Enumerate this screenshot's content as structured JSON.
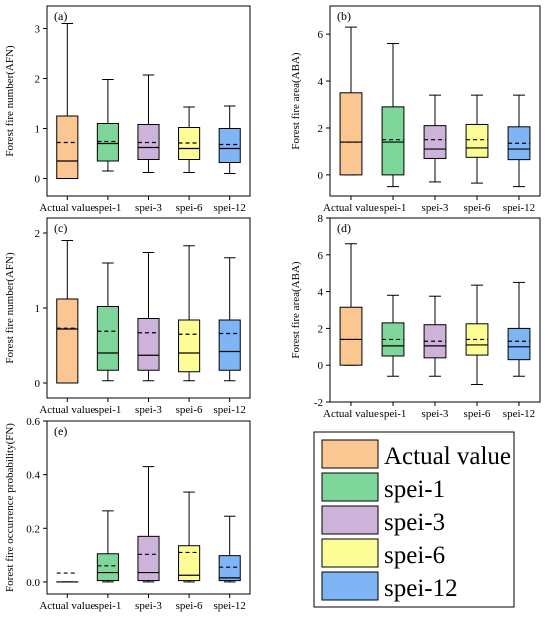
{
  "figure": {
    "legend": {
      "items": [
        {
          "label": "Actual value",
          "color": "#FAC793"
        },
        {
          "label": "spei-1",
          "color": "#7FD69B"
        },
        {
          "label": "spei-3",
          "color": "#CDB2D9"
        },
        {
          "label": "spei-6",
          "color": "#FDFD96"
        },
        {
          "label": "spei-12",
          "color": "#7FB4F5"
        }
      ]
    }
  },
  "chart_data": [
    {
      "type": "box",
      "panel_label": "(a)",
      "ylabel": "Forest fire number(AFN)",
      "ylim": [
        -0.35,
        3.45
      ],
      "yticks": [
        0,
        1,
        2,
        3
      ],
      "categories": [
        "Actual value",
        "spei-1",
        "spei-3",
        "spei-6",
        "spei-12"
      ],
      "colors": [
        "#FAC793",
        "#7FD69B",
        "#CDB2D9",
        "#FDFD96",
        "#7FB4F5"
      ],
      "boxes": [
        {
          "min": 0,
          "q1": 0,
          "median": 0.35,
          "q3": 1.25,
          "max": 3.1,
          "mean": 0.72
        },
        {
          "min": 0.15,
          "q1": 0.35,
          "median": 0.7,
          "q3": 1.1,
          "max": 1.98,
          "mean": 0.74
        },
        {
          "min": 0.12,
          "q1": 0.38,
          "median": 0.62,
          "q3": 1.08,
          "max": 2.07,
          "mean": 0.72
        },
        {
          "min": 0.12,
          "q1": 0.38,
          "median": 0.6,
          "q3": 1.02,
          "max": 1.43,
          "mean": 0.71
        },
        {
          "min": 0.1,
          "q1": 0.32,
          "median": 0.6,
          "q3": 1.0,
          "max": 1.45,
          "mean": 0.68
        }
      ]
    },
    {
      "type": "box",
      "panel_label": "(b)",
      "ylabel": "Forest fire area(ABA)",
      "ylim": [
        -0.9,
        7.2
      ],
      "yticks": [
        0,
        2,
        4,
        6
      ],
      "categories": [
        "Actual value",
        "spei-1",
        "spei-3",
        "spei-6",
        "spei-12"
      ],
      "colors": [
        "#FAC793",
        "#7FD69B",
        "#CDB2D9",
        "#FDFD96",
        "#7FB4F5"
      ],
      "boxes": [
        {
          "min": 0,
          "q1": 0,
          "median": 1.4,
          "q3": 3.5,
          "max": 6.3,
          "mean": 1.4
        },
        {
          "min": -0.5,
          "q1": 0,
          "median": 1.4,
          "q3": 2.9,
          "max": 5.6,
          "mean": 1.5
        },
        {
          "min": -0.3,
          "q1": 0.7,
          "median": 1.1,
          "q3": 2.1,
          "max": 3.4,
          "mean": 1.5
        },
        {
          "min": -0.35,
          "q1": 0.75,
          "median": 1.15,
          "q3": 2.15,
          "max": 3.4,
          "mean": 1.5
        },
        {
          "min": -0.5,
          "q1": 0.65,
          "median": 1.1,
          "q3": 2.05,
          "max": 3.4,
          "mean": 1.35
        }
      ]
    },
    {
      "type": "box",
      "panel_label": "(c)",
      "ylabel": "Forest fire number(AFN)",
      "ylim": [
        -0.2,
        2.2
      ],
      "yticks": [
        0,
        1,
        2
      ],
      "categories": [
        "Actual value",
        "spei-1",
        "spei-3",
        "spei-6",
        "spei-12"
      ],
      "colors": [
        "#FAC793",
        "#7FD69B",
        "#CDB2D9",
        "#FDFD96",
        "#7FB4F5"
      ],
      "boxes": [
        {
          "min": 0,
          "q1": 0,
          "median": 0.72,
          "q3": 1.12,
          "max": 1.9,
          "mean": 0.73
        },
        {
          "min": 0.03,
          "q1": 0.17,
          "median": 0.4,
          "q3": 1.02,
          "max": 1.6,
          "mean": 0.69
        },
        {
          "min": 0.03,
          "q1": 0.17,
          "median": 0.37,
          "q3": 0.86,
          "max": 1.74,
          "mean": 0.67
        },
        {
          "min": 0.03,
          "q1": 0.15,
          "median": 0.4,
          "q3": 0.84,
          "max": 1.83,
          "mean": 0.65
        },
        {
          "min": 0.03,
          "q1": 0.17,
          "median": 0.42,
          "q3": 0.84,
          "max": 1.67,
          "mean": 0.66
        }
      ]
    },
    {
      "type": "box",
      "panel_label": "(d)",
      "ylabel": "Forest fire area(ABA)",
      "ylim": [
        -2,
        8
      ],
      "yticks": [
        -2,
        0,
        2,
        4,
        6,
        8
      ],
      "categories": [
        "Actual value",
        "spei-1",
        "spei-3",
        "spei-6",
        "spei-12"
      ],
      "colors": [
        "#FAC793",
        "#7FD69B",
        "#CDB2D9",
        "#FDFD96",
        "#7FB4F5"
      ],
      "boxes": [
        {
          "min": 0,
          "q1": 0,
          "median": 1.4,
          "q3": 3.15,
          "max": 6.6,
          "mean": 1.4
        },
        {
          "min": -0.6,
          "q1": 0.5,
          "median": 1.05,
          "q3": 2.3,
          "max": 3.8,
          "mean": 1.4
        },
        {
          "min": -0.6,
          "q1": 0.4,
          "median": 1.05,
          "q3": 2.2,
          "max": 3.75,
          "mean": 1.3
        },
        {
          "min": -1.05,
          "q1": 0.55,
          "median": 1.1,
          "q3": 2.25,
          "max": 4.35,
          "mean": 1.4
        },
        {
          "min": -0.6,
          "q1": 0.3,
          "median": 1.0,
          "q3": 2.0,
          "max": 4.5,
          "mean": 1.3
        }
      ]
    },
    {
      "type": "box",
      "panel_label": "(e)",
      "ylabel": "Forest fire occurrence probability(FN)",
      "ylim": [
        -0.045,
        0.6
      ],
      "yticks": [
        0.0,
        0.2,
        0.4,
        0.6
      ],
      "categories": [
        "Actual value",
        "spei-1",
        "spei-3",
        "spei-6",
        "spei-12"
      ],
      "colors": [
        "#FAC793",
        "#7FD69B",
        "#CDB2D9",
        "#FDFD96",
        "#7FB4F5"
      ],
      "boxes": [
        {
          "min": 0,
          "q1": 0,
          "median": 0,
          "q3": 0,
          "max": 0,
          "mean": 0.033
        },
        {
          "min": 0,
          "q1": 0.005,
          "median": 0.035,
          "q3": 0.105,
          "max": 0.265,
          "mean": 0.06
        },
        {
          "min": 0,
          "q1": 0.005,
          "median": 0.035,
          "q3": 0.17,
          "max": 0.43,
          "mean": 0.103
        },
        {
          "min": 0,
          "q1": 0.005,
          "median": 0.025,
          "q3": 0.135,
          "max": 0.335,
          "mean": 0.11
        },
        {
          "min": 0,
          "q1": 0.005,
          "median": 0.015,
          "q3": 0.098,
          "max": 0.245,
          "mean": 0.055
        }
      ]
    }
  ]
}
